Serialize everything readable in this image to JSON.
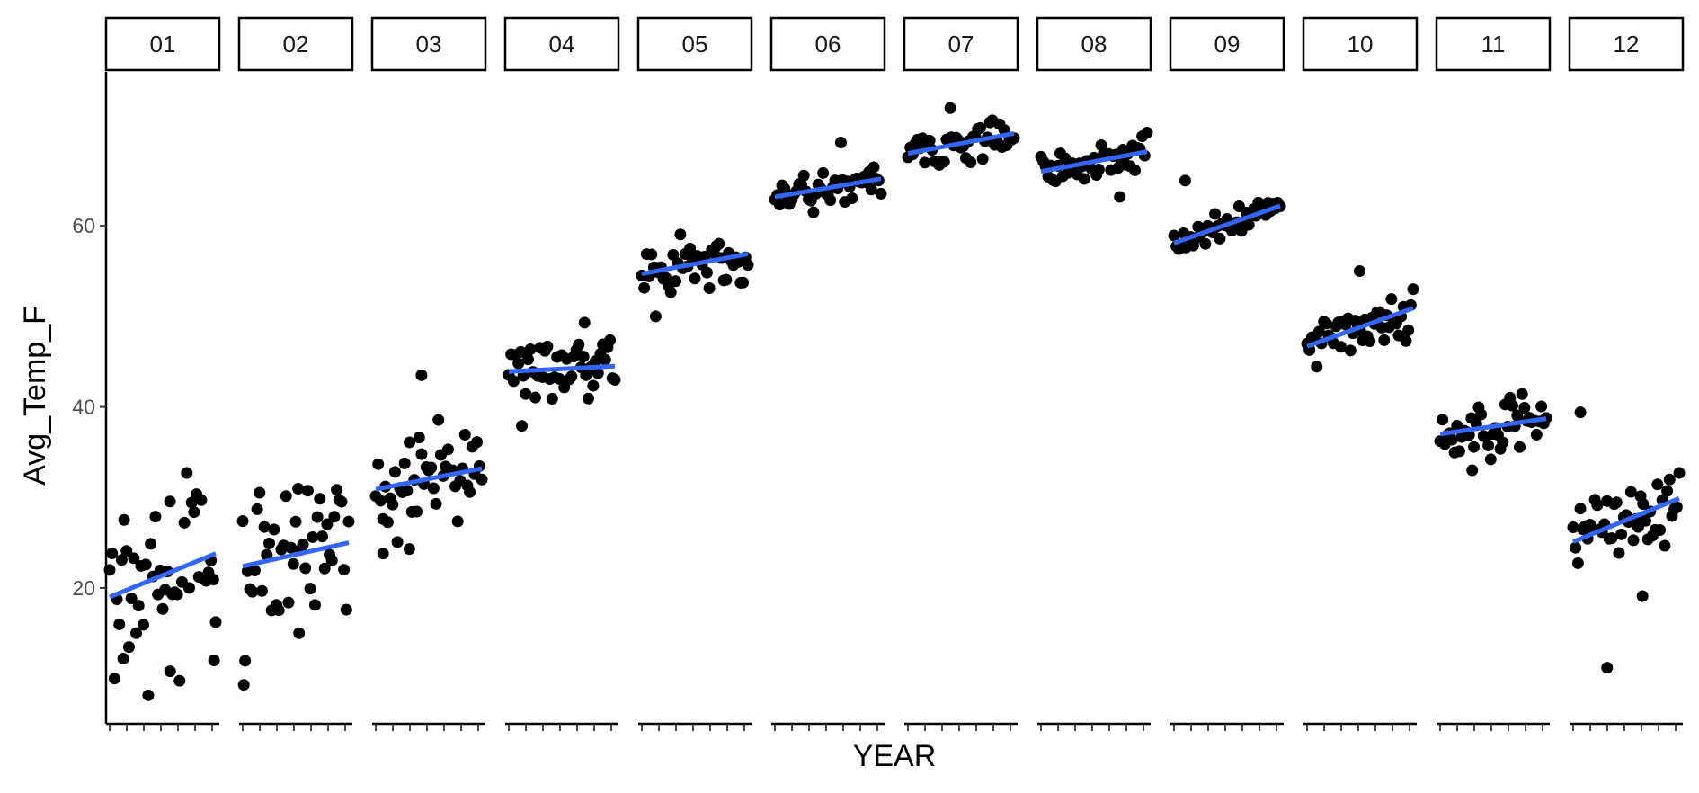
{
  "chart_data": {
    "type": "scatter",
    "facet_variable": "month",
    "xlabel": "YEAR",
    "ylabel": "Avg_Temp_F",
    "ylim": [
      5,
      77
    ],
    "yticks": [
      20,
      40,
      60
    ],
    "x_tick_count": 7,
    "grid": false,
    "colors": {
      "points": "#000000",
      "trend": "#3366FF"
    },
    "panels": [
      {
        "label": "01",
        "trend": [
          19.0,
          23.8
        ],
        "spread": 9.0,
        "low_outliers": [
          12.0,
          10.8,
          12.2
        ]
      },
      {
        "label": "02",
        "trend": [
          22.4,
          25.0
        ],
        "spread": 7.5,
        "low_outliers": [
          9.3,
          15.0
        ]
      },
      {
        "label": "03",
        "trend": [
          30.9,
          33.2
        ],
        "spread": 4.5,
        "low_outliers": [
          24.3,
          23.8
        ],
        "high_outliers": [
          43.5
        ]
      },
      {
        "label": "04",
        "trend": [
          43.9,
          44.5
        ],
        "spread": 3.0,
        "low_outliers": [
          37.9
        ],
        "high_outliers": [
          49.3
        ]
      },
      {
        "label": "05",
        "trend": [
          54.7,
          56.9
        ],
        "spread": 3.2,
        "low_outliers": [
          50.0
        ]
      },
      {
        "label": "06",
        "trend": [
          63.2,
          65.2
        ],
        "spread": 1.8,
        "high_outliers": [
          69.2
        ]
      },
      {
        "label": "07",
        "trend": [
          68.0,
          70.2
        ],
        "spread": 2.0,
        "high_outliers": [
          73.0
        ]
      },
      {
        "label": "08",
        "trend": [
          66.0,
          68.2
        ],
        "spread": 2.0,
        "low_outliers": [
          63.2
        ]
      },
      {
        "label": "09",
        "trend": [
          58.1,
          62.2
        ],
        "spread": 1.4,
        "high_outliers": [
          65.0
        ]
      },
      {
        "label": "10",
        "trend": [
          46.7,
          50.9
        ],
        "spread": 2.5,
        "high_outliers": [
          55.0
        ]
      },
      {
        "label": "11",
        "trend": [
          37.0,
          38.7
        ],
        "spread": 2.8,
        "low_outliers": [
          33.0
        ]
      },
      {
        "label": "12",
        "trend": [
          25.1,
          29.9
        ],
        "spread": 4.5,
        "low_outliers": [
          11.2,
          19.1
        ],
        "high_outliers": [
          39.4
        ]
      }
    ]
  }
}
